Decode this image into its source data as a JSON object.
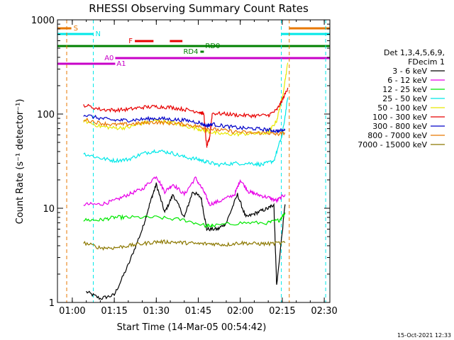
{
  "chart_data": {
    "type": "line",
    "title": "RHESSI Observing Summary Count Rates",
    "xlabel": "Start Time (14-Mar-05 00:54:42)",
    "ylabel": "Count Rate (s⁻¹ detector⁻¹)",
    "y_scale": "log",
    "ylim": [
      1,
      1000
    ],
    "xlim": [
      "00:54:42",
      "02:32:00"
    ],
    "x_ticks": [
      "01:00",
      "01:15",
      "01:30",
      "01:45",
      "02:00",
      "02:15",
      "02:30"
    ],
    "y_ticks": [
      "1",
      "10",
      "100",
      "1000"
    ],
    "legend_position": "right",
    "legend_header": [
      "Det 1,3,4,5,6,9,",
      "FDecim 1"
    ],
    "footer_date": "15-Oct-2021 12:33",
    "series": [
      {
        "name": "3 - 6 keV",
        "color": "#000000",
        "points": [
          [
            "00:56",
            null
          ],
          [
            "01:05",
            1.3
          ],
          [
            "01:10",
            1.1
          ],
          [
            "01:15",
            1.2
          ],
          [
            "01:20",
            2.5
          ],
          [
            "01:25",
            6
          ],
          [
            "01:28",
            12
          ],
          [
            "01:30",
            18
          ],
          [
            "01:33",
            9
          ],
          [
            "01:36",
            14
          ],
          [
            "01:40",
            8
          ],
          [
            "01:43",
            15
          ],
          [
            "01:46",
            13
          ],
          [
            "01:48",
            6
          ],
          [
            "01:52",
            6
          ],
          [
            "01:55",
            7
          ],
          [
            "01:59",
            14
          ],
          [
            "02:02",
            8
          ],
          [
            "02:06",
            9
          ],
          [
            "02:10",
            10
          ],
          [
            "02:12",
            11
          ],
          [
            "02:13",
            1.5
          ],
          [
            "02:16",
            11
          ]
        ]
      },
      {
        "name": "6 - 12 keV",
        "color": "#e800e8",
        "points": [
          [
            "01:04",
            11
          ],
          [
            "01:10",
            11
          ],
          [
            "01:15",
            12
          ],
          [
            "01:20",
            14
          ],
          [
            "01:25",
            16
          ],
          [
            "01:30",
            22
          ],
          [
            "01:33",
            15
          ],
          [
            "01:36",
            18
          ],
          [
            "01:40",
            14
          ],
          [
            "01:44",
            21
          ],
          [
            "01:47",
            15
          ],
          [
            "01:49",
            11
          ],
          [
            "01:53",
            12
          ],
          [
            "01:58",
            14
          ],
          [
            "02:00",
            20
          ],
          [
            "02:03",
            15
          ],
          [
            "02:06",
            14
          ],
          [
            "02:10",
            13
          ],
          [
            "02:13",
            12
          ],
          [
            "02:16",
            14
          ]
        ]
      },
      {
        "name": "12 - 25 keV",
        "color": "#00e800",
        "points": [
          [
            "01:04",
            7.5
          ],
          [
            "01:10",
            7.5
          ],
          [
            "01:15",
            8
          ],
          [
            "01:20",
            8
          ],
          [
            "01:30",
            8
          ],
          [
            "01:40",
            7.5
          ],
          [
            "01:48",
            6.5
          ],
          [
            "01:50",
            6.5
          ],
          [
            "02:00",
            7
          ],
          [
            "02:10",
            7
          ],
          [
            "02:14",
            7.5
          ],
          [
            "02:16",
            9
          ]
        ]
      },
      {
        "name": "25 - 50 keV",
        "color": "#00e8e8",
        "points": [
          [
            "01:04",
            38
          ],
          [
            "01:10",
            34
          ],
          [
            "01:15",
            32
          ],
          [
            "01:20",
            33
          ],
          [
            "01:25",
            38
          ],
          [
            "01:30",
            41
          ],
          [
            "01:35",
            39
          ],
          [
            "01:40",
            35
          ],
          [
            "01:45",
            33
          ],
          [
            "01:48",
            31
          ],
          [
            "01:52",
            29
          ],
          [
            "01:58",
            30
          ],
          [
            "02:04",
            30
          ],
          [
            "02:08",
            29
          ],
          [
            "02:12",
            32
          ],
          [
            "02:15",
            60
          ],
          [
            "02:17",
            150
          ]
        ]
      },
      {
        "name": "50 - 100 keV",
        "color": "#e8e800",
        "points": [
          [
            "01:04",
            85
          ],
          [
            "01:10",
            74
          ],
          [
            "01:15",
            71
          ],
          [
            "01:20",
            72
          ],
          [
            "01:25",
            80
          ],
          [
            "01:30",
            85
          ],
          [
            "01:35",
            82
          ],
          [
            "01:40",
            75
          ],
          [
            "01:45",
            70
          ],
          [
            "01:48",
            66
          ],
          [
            "01:52",
            62
          ],
          [
            "01:58",
            61
          ],
          [
            "02:04",
            62
          ],
          [
            "02:10",
            63
          ],
          [
            "02:13",
            85
          ],
          [
            "02:15",
            150
          ],
          [
            "02:17",
            350
          ]
        ]
      },
      {
        "name": "100 - 300 keV",
        "color": "#e80000",
        "points": [
          [
            "01:04",
            125
          ],
          [
            "01:10",
            112
          ],
          [
            "01:15",
            110
          ],
          [
            "01:20",
            112
          ],
          [
            "01:25",
            118
          ],
          [
            "01:30",
            120
          ],
          [
            "01:35",
            118
          ],
          [
            "01:40",
            112
          ],
          [
            "01:45",
            106
          ],
          [
            "01:47",
            100
          ],
          [
            "01:48",
            45
          ],
          [
            "01:49",
            55
          ],
          [
            "01:50",
            102
          ],
          [
            "01:55",
            100
          ],
          [
            "02:00",
            97
          ],
          [
            "02:05",
            96
          ],
          [
            "02:10",
            97
          ],
          [
            "02:13",
            110
          ],
          [
            "02:15",
            140
          ],
          [
            "02:17",
            190
          ]
        ]
      },
      {
        "name": "300 - 800 keV",
        "color": "#0000c8",
        "points": [
          [
            "01:04",
            98
          ],
          [
            "01:10",
            90
          ],
          [
            "01:15",
            86
          ],
          [
            "01:20",
            86
          ],
          [
            "01:25",
            88
          ],
          [
            "01:30",
            90
          ],
          [
            "01:35",
            88
          ],
          [
            "01:40",
            86
          ],
          [
            "01:45",
            82
          ],
          [
            "01:48",
            75
          ],
          [
            "01:50",
            78
          ],
          [
            "01:55",
            74
          ],
          [
            "02:00",
            71
          ],
          [
            "02:05",
            70
          ],
          [
            "02:10",
            68
          ],
          [
            "02:13",
            66
          ],
          [
            "02:16",
            67
          ]
        ]
      },
      {
        "name": "800 - 7000 keV",
        "color": "#e87800",
        "points": [
          [
            "01:04",
            88
          ],
          [
            "01:10",
            80
          ],
          [
            "01:15",
            77
          ],
          [
            "01:20",
            78
          ],
          [
            "01:25",
            80
          ],
          [
            "01:30",
            82
          ],
          [
            "01:35",
            80
          ],
          [
            "01:40",
            78
          ],
          [
            "01:45",
            74
          ],
          [
            "01:48",
            70
          ],
          [
            "01:52",
            68
          ],
          [
            "01:58",
            65
          ],
          [
            "02:04",
            63
          ],
          [
            "02:10",
            63
          ],
          [
            "02:13",
            61
          ],
          [
            "02:16",
            63
          ]
        ]
      },
      {
        "name": "7000 - 15000 keV",
        "color": "#8c7800",
        "points": [
          [
            "01:04",
            4.3
          ],
          [
            "01:10",
            3.8
          ],
          [
            "01:15",
            3.8
          ],
          [
            "01:20",
            4.0
          ],
          [
            "01:25",
            4.2
          ],
          [
            "01:30",
            4.4
          ],
          [
            "01:35",
            4.4
          ],
          [
            "01:40",
            4.3
          ],
          [
            "01:45",
            4.2
          ],
          [
            "01:50",
            4.2
          ],
          [
            "01:55",
            4.1
          ],
          [
            "02:00",
            4.3
          ],
          [
            "02:05",
            4.2
          ],
          [
            "02:10",
            4.2
          ],
          [
            "02:16",
            4.3
          ]
        ]
      }
    ],
    "vertical_lines": [
      {
        "time": "00:58:00",
        "color": "#e87800"
      },
      {
        "time": "01:07:30",
        "color": "#00e8e8"
      },
      {
        "time": "02:14:40",
        "color": "#00e8e8"
      },
      {
        "time": "02:17:30",
        "color": "#e87800"
      },
      {
        "time": "02:30:30",
        "color": "#00e8e8"
      }
    ],
    "flag_bars": [
      {
        "label": "S",
        "color": "#e87800",
        "segments": [
          [
            "00:54:42",
            "00:59:40"
          ],
          [
            "02:17:30",
            "02:32:00"
          ]
        ]
      },
      {
        "label": "N",
        "color": "#00e8e8",
        "segments": [
          [
            "00:54:42",
            "01:07:30"
          ],
          [
            "02:14:40",
            "02:32:00"
          ]
        ]
      },
      {
        "label": "F",
        "color": "#e80000",
        "segments": [
          [
            "01:22:20",
            "01:29:00"
          ],
          [
            "01:34:50",
            "01:39:20"
          ]
        ]
      },
      {
        "label": "RD0",
        "color": "#008000",
        "segments": [
          [
            "00:54:42",
            "02:32:00"
          ]
        ]
      },
      {
        "label": "RD4",
        "color": "#008000",
        "segments": [
          [
            "01:45:45",
            "01:47:00"
          ]
        ]
      },
      {
        "label": "A0",
        "color": "#c800c8",
        "segments": [
          [
            "01:15:20",
            "02:32:00"
          ]
        ]
      },
      {
        "label": "A1",
        "color": "#c800c8",
        "segments": [
          [
            "00:54:42",
            "01:15:20"
          ]
        ]
      }
    ]
  }
}
